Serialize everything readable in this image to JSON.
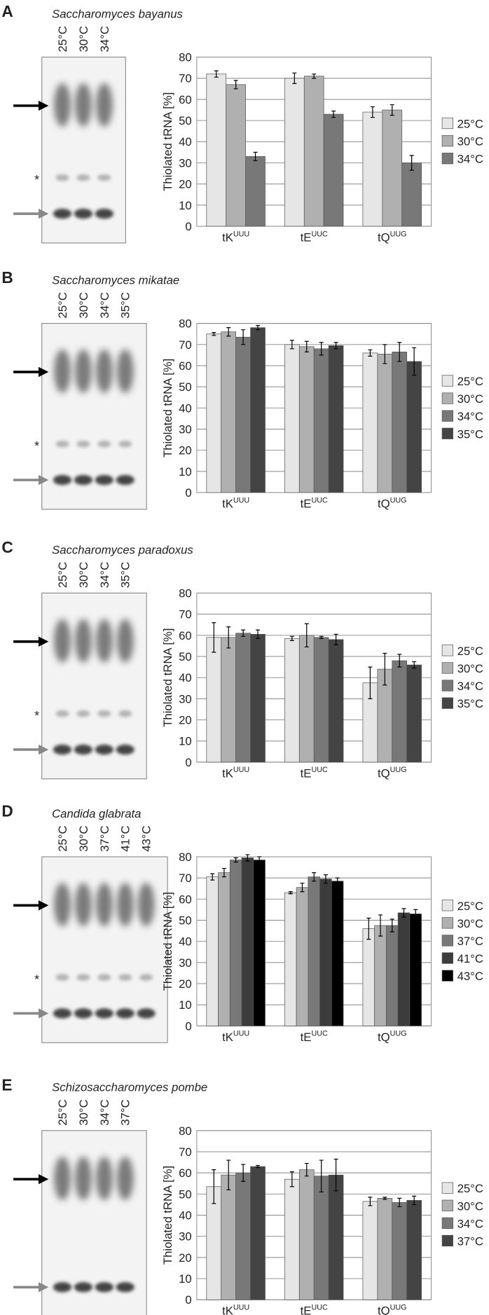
{
  "chart_data": [
    {
      "type": "bar",
      "panel": "A",
      "species": "Saccharomyces bayanus",
      "marker": "*",
      "ylabel": "Thiolated tRNA [%]",
      "categories": [
        "tK",
        "tE",
        "tQ"
      ],
      "category_superscripts": [
        "UUU",
        "UUC",
        "UUG"
      ],
      "ylim": [
        0,
        80
      ],
      "yticks": [
        0,
        10,
        20,
        30,
        40,
        50,
        60,
        70,
        80
      ],
      "grid": true,
      "legend": "right",
      "series": [
        {
          "name": "25°C",
          "color": "#e6e6e6",
          "values": [
            72,
            70,
            54
          ],
          "errors": [
            1.5,
            2.5,
            2.5
          ]
        },
        {
          "name": "30°C",
          "color": "#b0b0b0",
          "values": [
            67,
            71,
            55
          ],
          "errors": [
            2,
            1,
            2.5
          ]
        },
        {
          "name": "34°C",
          "color": "#787878",
          "values": [
            33,
            53,
            30
          ],
          "errors": [
            2,
            1.5,
            3.5
          ]
        }
      ]
    },
    {
      "type": "bar",
      "panel": "B",
      "species": "Saccharomyces mikatae",
      "marker": "*",
      "ylabel": "Thiolated tRNA [%]",
      "categories": [
        "tK",
        "tE",
        "tQ"
      ],
      "category_superscripts": [
        "UUU",
        "UUC",
        "UUG"
      ],
      "ylim": [
        0,
        80
      ],
      "yticks": [
        0,
        10,
        20,
        30,
        40,
        50,
        60,
        70,
        80
      ],
      "grid": true,
      "legend": "right",
      "series": [
        {
          "name": "25°C",
          "color": "#e6e6e6",
          "values": [
            75,
            70,
            66
          ],
          "errors": [
            0.7,
            2,
            1.5
          ]
        },
        {
          "name": "30°C",
          "color": "#b0b0b0",
          "values": [
            76,
            69,
            65.5
          ],
          "errors": [
            2,
            2.5,
            4.5
          ]
        },
        {
          "name": "34°C",
          "color": "#787878",
          "values": [
            73.5,
            68,
            66.5
          ],
          "errors": [
            3.5,
            3,
            4.5
          ]
        },
        {
          "name": "35°C",
          "color": "#444444",
          "values": [
            78,
            69.5,
            62
          ],
          "errors": [
            1,
            1.5,
            6.5
          ]
        }
      ]
    },
    {
      "type": "bar",
      "panel": "C",
      "species": "Saccharomyces paradoxus",
      "marker": "*",
      "ylabel": "Thiolated tRNA [%]",
      "categories": [
        "tK",
        "tE",
        "tQ"
      ],
      "category_superscripts": [
        "UUU",
        "UUC",
        "UUG"
      ],
      "ylim": [
        0,
        80
      ],
      "yticks": [
        0,
        10,
        20,
        30,
        40,
        50,
        60,
        70,
        80
      ],
      "grid": true,
      "legend": "right",
      "series": [
        {
          "name": "25°C",
          "color": "#e6e6e6",
          "values": [
            59,
            58.5,
            37.5
          ],
          "errors": [
            7,
            1,
            7.5
          ]
        },
        {
          "name": "30°C",
          "color": "#b0b0b0",
          "values": [
            59,
            60,
            44
          ],
          "errors": [
            5,
            5.5,
            7.5
          ]
        },
        {
          "name": "34°C",
          "color": "#787878",
          "values": [
            61,
            59,
            48
          ],
          "errors": [
            1.5,
            0.5,
            3
          ]
        },
        {
          "name": "35°C",
          "color": "#444444",
          "values": [
            60.5,
            58,
            46
          ],
          "errors": [
            2,
            2.5,
            1.5
          ]
        }
      ]
    },
    {
      "type": "bar",
      "panel": "D",
      "species": "Candida glabrata",
      "marker": "*",
      "ylabel": "Thiolated tRNA [%]",
      "categories": [
        "tK",
        "tE",
        "tQ"
      ],
      "category_superscripts": [
        "UUU",
        "UUC",
        "UUG"
      ],
      "ylim": [
        0,
        80
      ],
      "yticks": [
        0,
        10,
        20,
        30,
        40,
        50,
        60,
        70,
        80
      ],
      "grid": true,
      "legend": "right",
      "series": [
        {
          "name": "25°C",
          "color": "#e6e6e6",
          "values": [
            70.5,
            63,
            46
          ],
          "errors": [
            1.5,
            0.5,
            5
          ]
        },
        {
          "name": "30°C",
          "color": "#b0b0b0",
          "values": [
            72.5,
            65.5,
            47.5
          ],
          "errors": [
            2,
            2,
            5
          ]
        },
        {
          "name": "37°C",
          "color": "#787878",
          "values": [
            78.5,
            70.5,
            47.5
          ],
          "errors": [
            1,
            2,
            3
          ]
        },
        {
          "name": "41°C",
          "color": "#3c3c3c",
          "values": [
            79.5,
            69.5,
            53.5
          ],
          "errors": [
            1.5,
            2,
            2
          ]
        },
        {
          "name": "43°C",
          "color": "#000000",
          "values": [
            78.5,
            68.5,
            53
          ],
          "errors": [
            1.5,
            1.5,
            2
          ]
        }
      ]
    },
    {
      "type": "bar",
      "panel": "E",
      "species": "Schizosaccharomyces pombe",
      "ylabel": "Thiolated tRNA [%]",
      "categories": [
        "tK",
        "tE",
        "tQ"
      ],
      "category_superscripts": [
        "UUU",
        "UUC",
        "UUG"
      ],
      "ylim": [
        0,
        80
      ],
      "yticks": [
        0,
        10,
        20,
        30,
        40,
        50,
        60,
        70,
        80
      ],
      "grid": true,
      "legend": "right",
      "series": [
        {
          "name": "25°C",
          "color": "#e6e6e6",
          "values": [
            53.5,
            57,
            46.5
          ],
          "errors": [
            8,
            3.5,
            2
          ]
        },
        {
          "name": "30°C",
          "color": "#b0b0b0",
          "values": [
            59,
            61.5,
            48
          ],
          "errors": [
            7,
            3,
            0.5
          ]
        },
        {
          "name": "34°C",
          "color": "#787878",
          "values": [
            60,
            58.5,
            46
          ],
          "errors": [
            4,
            7.5,
            2
          ]
        },
        {
          "name": "37°C",
          "color": "#444444",
          "values": [
            63,
            59,
            47
          ],
          "errors": [
            0.5,
            7.5,
            2
          ]
        }
      ]
    }
  ]
}
